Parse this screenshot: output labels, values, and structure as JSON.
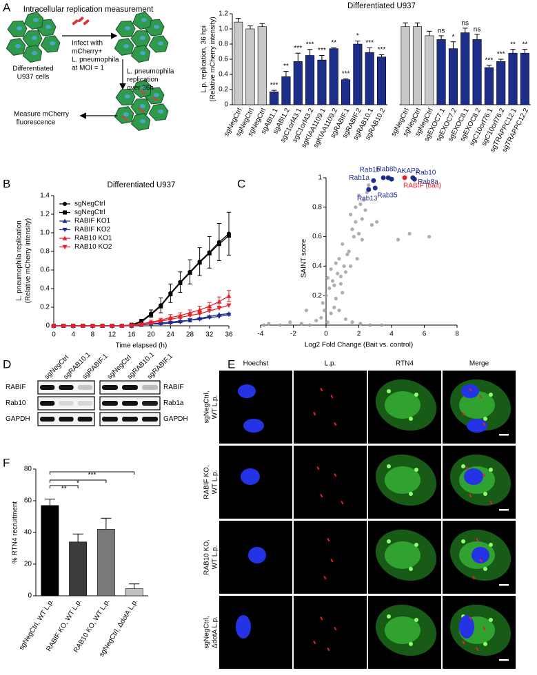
{
  "panel_letters": [
    "A",
    "B",
    "C",
    "D",
    "E",
    "F"
  ],
  "schematic": {
    "title": "Intracellular replication measurement",
    "cells_label": [
      "Differentiated",
      "U937 cells"
    ],
    "infect_label": [
      "Infect with",
      "mCherry+",
      "L. pneumophila",
      "at MOI = 1"
    ],
    "replication_label": [
      "L. pneumophila",
      "replication",
      "over 36h"
    ],
    "measure_label": [
      "Measure mCherry",
      "fluorescence"
    ]
  },
  "chart_data": [
    {
      "type": "bar",
      "title": "Differentiated U937",
      "ylabel": [
        "L.p. replication, 36 hpi",
        "(Relative mCherry intensity)"
      ],
      "categories": [
        "sgNegCtrl",
        "sgNegCtrl",
        "sgNegCtrl",
        "sgABI1.1",
        "sgABI1.2",
        "sgC1orf43.1",
        "sgC1orf43.2",
        "sgKIAA1109.1",
        "sgKIAA1109.2",
        "sgRABIF.1",
        "sgRABIF.2",
        "sgRAB10.1",
        "sgRAB10.2",
        null,
        "sgNegCtrl",
        "sgNegCtrl",
        "sgNegCtrl",
        "sgEXOC7.1",
        "sgEXOC7.2",
        "sgEXOC8.1",
        "sgEXOC8.2",
        "sgC10orf76.1",
        "sgC10orf76.2",
        "sgTRAPPC12.1",
        "sgTRAPPC12.2"
      ],
      "values": [
        1.09,
        1.0,
        1.03,
        0.17,
        0.37,
        0.57,
        0.65,
        0.59,
        0.74,
        0.33,
        0.8,
        0.69,
        0.63,
        null,
        1.03,
        1.03,
        0.91,
        0.86,
        0.74,
        0.95,
        0.86,
        0.49,
        0.57,
        0.68,
        0.68
      ],
      "errors": [
        0.05,
        0.04,
        0.04,
        0.02,
        0.07,
        0.11,
        0.08,
        0.06,
        0.01,
        0.01,
        0.04,
        0.06,
        0.03,
        null,
        0.05,
        0.05,
        0.06,
        0.05,
        0.09,
        0.06,
        0.07,
        0.03,
        0.03,
        0.05,
        0.05
      ],
      "colors": [
        "#c8c8c8",
        "#c8c8c8",
        "#c8c8c8",
        "#1c2d8a",
        "#1c2d8a",
        "#1c2d8a",
        "#1c2d8a",
        "#1c2d8a",
        "#1c2d8a",
        "#1c2d8a",
        "#1c2d8a",
        "#1c2d8a",
        "#1c2d8a",
        null,
        "#c8c8c8",
        "#c8c8c8",
        "#c8c8c8",
        "#1c2d8a",
        "#1c2d8a",
        "#1c2d8a",
        "#1c2d8a",
        "#1c2d8a",
        "#1c2d8a",
        "#1c2d8a",
        "#1c2d8a"
      ],
      "annotations": [
        null,
        null,
        null,
        "***",
        "**",
        "***",
        "***",
        "***",
        "**",
        "***",
        "*",
        "***",
        "***",
        null,
        null,
        null,
        null,
        "ns",
        "*",
        "ns",
        "ns",
        "***",
        "***",
        "**",
        "**"
      ],
      "ylim": [
        0,
        1.2
      ],
      "yticks": [
        0,
        0.2,
        0.4,
        0.6,
        0.8,
        {
          "value": 1,
          "label": "1.0"
        },
        1.2
      ]
    },
    {
      "type": "line",
      "title": "Differentiated U937",
      "xlabel": "Time elapsed (h)",
      "ylabel": [
        "L. pneumophila replication",
        "(Relative mCherry intensity)"
      ],
      "x": [
        0,
        2,
        4,
        6,
        8,
        10,
        12,
        14,
        16,
        18,
        20,
        22,
        24,
        26,
        28,
        30,
        32,
        34,
        36
      ],
      "xlim": [
        0,
        36
      ],
      "ylim": [
        0,
        1.4
      ],
      "xticks": [
        0,
        4,
        8,
        12,
        16,
        20,
        24,
        28,
        32,
        36
      ],
      "yticks": [
        0,
        0.2,
        0.4,
        0.6,
        0.8,
        {
          "value": 1,
          "label": "1.0"
        },
        1.2,
        1.4
      ],
      "legend": "upper left",
      "series": [
        {
          "name": "sgNegCtrl",
          "color": "#000000",
          "marker": "circle",
          "values": [
            0,
            0,
            0,
            0,
            0,
            0,
            0,
            0,
            0.01,
            0.05,
            0.13,
            0.22,
            0.35,
            0.47,
            0.58,
            0.69,
            0.79,
            0.9,
            0.99
          ],
          "errors": [
            0,
            0,
            0,
            0,
            0,
            0,
            0,
            0,
            0.01,
            0.02,
            0.04,
            0.08,
            0.1,
            0.11,
            0.13,
            0.15,
            0.17,
            0.2,
            0.23
          ]
        },
        {
          "name": "sgNegCtrl",
          "color": "#000000",
          "marker": "square",
          "values": [
            0,
            0,
            0,
            0,
            0,
            0,
            0,
            0,
            0.01,
            0.04,
            0.12,
            0.21,
            0.34,
            0.46,
            0.57,
            0.68,
            0.78,
            0.88,
            0.97
          ]
        },
        {
          "name": "RABIF KO1",
          "color": "#1c2d8a",
          "marker": "triangle-up",
          "values": [
            0,
            0,
            0,
            0,
            0,
            0,
            0,
            0,
            0,
            0.01,
            0.02,
            0.03,
            0.04,
            0.05,
            0.06,
            0.08,
            0.1,
            0.12,
            0.13
          ]
        },
        {
          "name": "RABIF KO2",
          "color": "#1c2d8a",
          "marker": "triangle-down",
          "values": [
            0,
            0,
            0,
            0,
            0,
            0,
            0,
            0,
            0,
            0.01,
            0.02,
            0.02,
            0.03,
            0.04,
            0.06,
            0.07,
            0.09,
            0.1,
            0.12
          ]
        },
        {
          "name": "RAB10 KO1",
          "color": "#e8202a",
          "marker": "triangle-up",
          "values": [
            0,
            0,
            0,
            0,
            0,
            0,
            0,
            0,
            0.01,
            0.02,
            0.04,
            0.06,
            0.09,
            0.11,
            0.14,
            0.17,
            0.21,
            0.26,
            0.32
          ],
          "errors": [
            0,
            0,
            0,
            0,
            0,
            0,
            0,
            0,
            0.01,
            0.01,
            0.02,
            0.02,
            0.03,
            0.03,
            0.03,
            0.04,
            0.04,
            0.05,
            0.06
          ]
        },
        {
          "name": "RAB10 KO2",
          "color": "#e8202a",
          "marker": "triangle-down",
          "values": [
            0,
            0,
            0,
            0,
            0,
            0,
            0,
            0,
            0,
            0.01,
            0.03,
            0.05,
            0.07,
            0.09,
            0.11,
            0.13,
            0.16,
            0.19,
            0.22
          ]
        }
      ]
    },
    {
      "type": "scatter",
      "xlabel": "Log2 Fold Change (Bait vs. control)",
      "ylabel": "SAINT score",
      "xlim": [
        -4,
        8
      ],
      "ylim": [
        0,
        1
      ],
      "xticks": [
        -4,
        -2,
        0,
        2,
        4,
        6,
        8
      ],
      "yticks": [
        0.2,
        0.4,
        0.6,
        0.8,
        1
      ],
      "series": [
        {
          "color": "#a0a0a0",
          "x": [
            -3.5,
            -2.8,
            -2.2,
            -1.5,
            -1.0,
            -0.6,
            -0.3,
            0.1,
            0.3,
            0.5,
            0.8,
            1.2,
            1.6,
            2.1,
            2.7,
            3.4,
            -0.2,
            0.0,
            0.2,
            0.4,
            0.6,
            0.7,
            0.9,
            1.0,
            1.1,
            -0.1,
            0.1,
            0.3,
            0.5,
            0.6,
            0.8,
            0.9,
            1.2,
            1.4,
            1.0,
            1.3,
            1.5,
            1.7,
            1.9,
            1.6,
            1.8,
            2.0,
            2.2,
            1.5,
            1.8,
            2.3,
            2.0,
            2.2,
            2.5,
            2.4,
            2.1,
            2.6,
            2.8,
            3.1,
            -3.8,
            -1.2,
            5.1,
            6.3,
            4.4
          ],
          "y": [
            0.01,
            0.0,
            0.02,
            0.01,
            0.0,
            0.03,
            0.05,
            0.02,
            0.08,
            0.12,
            0.1,
            0.04,
            0.02,
            0.01,
            0.0,
            0.0,
            0.15,
            0.2,
            0.25,
            0.3,
            0.18,
            0.35,
            0.28,
            0.22,
            0.4,
            0.1,
            0.32,
            0.38,
            0.27,
            0.42,
            0.45,
            0.33,
            0.36,
            0.5,
            0.55,
            0.48,
            0.4,
            0.6,
            0.45,
            0.65,
            0.7,
            0.62,
            0.58,
            0.75,
            0.8,
            0.85,
            0.88,
            0.72,
            0.9,
            0.78,
            0.82,
            0.95,
            0.68,
            0.7,
            0.0,
            0.1,
            0.62,
            0.6,
            0.58
          ]
        },
        {
          "color": "#1c2d8a",
          "x": [
            2.6,
            2.9,
            3.0,
            3.5,
            3.8,
            4.0,
            5.3,
            5.4
          ],
          "y": [
            0.92,
            0.98,
            0.93,
            1.0,
            1.0,
            0.99,
            1.0,
            0.99
          ],
          "labels": [
            "Rab13",
            "Rab1a",
            "Rab35",
            "Rab1b",
            "Rab8b",
            "AKAP2",
            "Rab10",
            "Rab8a"
          ]
        },
        {
          "color": "#e8202a",
          "x": [
            4.8
          ],
          "y": [
            1.0
          ],
          "labels": [
            "RABIF (bait)"
          ]
        }
      ]
    },
    {
      "type": "bar",
      "ylabel": "% RTN4 recruitment",
      "categories": [
        "sgNegCtrl, WT L.p.",
        "RABIF KO, WT L.p.",
        "RAB10 KO, WT L.p.",
        "sgNegCtrl, ΔdotA L.p."
      ],
      "values": [
        57,
        34,
        42,
        4.5
      ],
      "errors": [
        4,
        5,
        7,
        3
      ],
      "colors": [
        "#000000",
        "#3c3c3c",
        "#7a7a7a",
        "#c0c0c0"
      ],
      "ylim": [
        0,
        80
      ],
      "yticks": [
        0,
        20,
        40,
        60,
        80
      ],
      "significance": [
        {
          "groups": [
            0,
            1
          ],
          "label": "**"
        },
        {
          "groups": [
            0,
            2
          ],
          "label": "*"
        },
        {
          "groups": [
            0,
            3
          ],
          "label": "***"
        }
      ]
    }
  ],
  "blot": {
    "left": {
      "lanes": [
        "sgNegCtrl",
        "sgRAB10.1",
        "sgRABIF.1"
      ],
      "rows": [
        "RABIF",
        "Rab10",
        "GAPDH"
      ]
    },
    "right": {
      "lanes": [
        "sgNegCtrl",
        "sgRAB10.1",
        "sgRABIF.1"
      ],
      "rows": [
        "RABIF",
        "Rab1a",
        "GAPDH"
      ]
    }
  },
  "microscopy": {
    "columns": [
      "Hoechst",
      "L.p.",
      "RTN4",
      "Merge"
    ],
    "rows": [
      [
        "sgNegCtrl,",
        "WT L.p."
      ],
      [
        "RABIF KO,",
        "WT L.p."
      ],
      [
        "RAB10 KO,",
        "WT L.p."
      ],
      [
        "sgNegCtrl,",
        "ΔdotA L.p."
      ]
    ]
  }
}
